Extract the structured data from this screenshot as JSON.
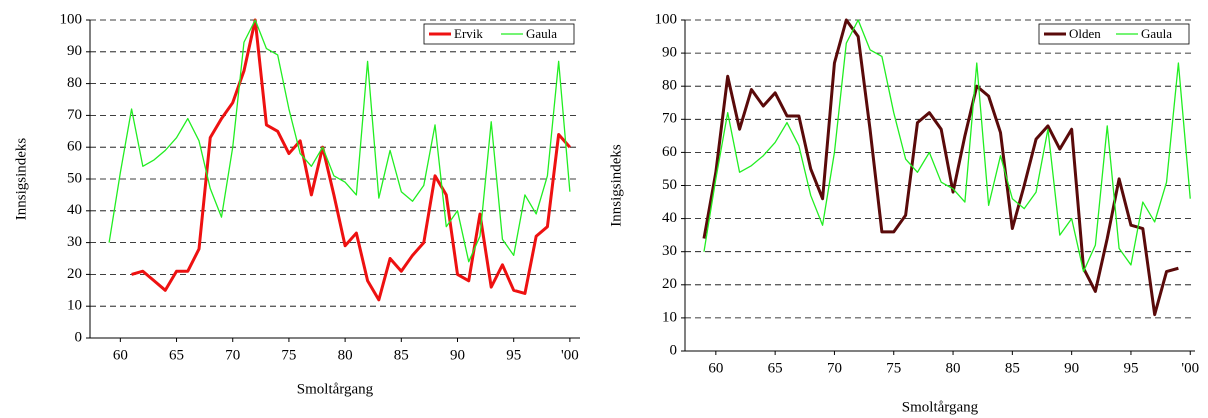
{
  "chart_data": [
    {
      "type": "line",
      "x_label": "Smoltårgang",
      "y_label": "Innsigsindeks",
      "legend": "upper right",
      "grid": true,
      "x": [
        59,
        60,
        61,
        62,
        63,
        64,
        65,
        66,
        67,
        68,
        69,
        70,
        71,
        72,
        73,
        74,
        75,
        76,
        77,
        78,
        79,
        80,
        81,
        82,
        83,
        84,
        85,
        86,
        87,
        88,
        89,
        90,
        91,
        92,
        93,
        94,
        95,
        96,
        97,
        98,
        99,
        100
      ],
      "xlim": [
        57.3,
        100.9
      ],
      "xticks": [
        60,
        65,
        70,
        75,
        80,
        85,
        90,
        95,
        {
          "value": 100,
          "label": "'00"
        }
      ],
      "ylim": [
        0,
        100
      ],
      "yticks": [
        0,
        10,
        20,
        30,
        40,
        50,
        60,
        70,
        80,
        90,
        100
      ],
      "series": [
        {
          "name": "Ervik",
          "color": "#ee1111",
          "width": 3,
          "values": [
            null,
            null,
            20,
            21,
            18,
            15,
            21,
            21,
            28,
            63,
            69,
            74,
            84,
            100,
            67,
            65,
            58,
            62,
            45,
            60,
            45,
            29,
            33,
            18,
            12,
            25,
            21,
            26,
            30,
            51,
            45,
            20,
            18,
            39,
            16,
            23,
            15,
            14,
            32,
            35,
            64,
            60
          ]
        },
        {
          "name": "Gaula",
          "color": "#22ee22",
          "width": 1.3,
          "values": [
            30,
            52,
            72,
            54,
            56,
            59,
            63,
            69,
            62,
            47,
            38,
            60,
            93,
            100,
            91,
            89,
            72,
            58,
            54,
            60,
            51,
            49,
            45,
            87,
            44,
            59,
            46,
            43,
            48,
            67,
            35,
            40,
            24,
            32,
            68,
            31,
            26,
            45,
            39,
            51,
            87,
            46
          ]
        }
      ]
    },
    {
      "type": "line",
      "x_label": "Smoltårgang",
      "y_label": "Innsigsindeks",
      "legend": "upper right",
      "grid": true,
      "x": [
        59,
        60,
        61,
        62,
        63,
        64,
        65,
        66,
        67,
        68,
        69,
        70,
        71,
        72,
        73,
        74,
        75,
        76,
        77,
        78,
        79,
        80,
        81,
        82,
        83,
        84,
        85,
        86,
        87,
        88,
        89,
        90,
        91,
        92,
        93,
        94,
        95,
        96,
        97,
        98,
        99,
        100
      ],
      "xlim": [
        57.4,
        100.4
      ],
      "xticks": [
        60,
        65,
        70,
        75,
        80,
        85,
        90,
        95,
        {
          "value": 100,
          "label": "'00"
        }
      ],
      "ylim": [
        0,
        100
      ],
      "yticks": [
        0,
        10,
        20,
        30,
        40,
        50,
        60,
        70,
        80,
        90,
        100
      ],
      "series": [
        {
          "name": "Olden",
          "color": "#5a0a0a",
          "width": 3,
          "values": [
            34,
            54,
            83,
            67,
            79,
            74,
            78,
            71,
            71,
            55,
            46,
            87,
            100,
            95,
            67,
            36,
            36,
            41,
            69,
            72,
            67,
            48,
            65,
            80,
            77,
            66,
            37,
            50,
            64,
            68,
            61,
            67,
            25,
            18,
            34,
            52,
            38,
            37,
            11,
            24,
            25,
            null
          ]
        },
        {
          "name": "Gaula",
          "color": "#22ee22",
          "width": 1.3,
          "values": [
            30,
            52,
            72,
            54,
            56,
            59,
            63,
            69,
            62,
            47,
            38,
            60,
            93,
            100,
            91,
            89,
            72,
            58,
            54,
            60,
            51,
            49,
            45,
            87,
            44,
            59,
            46,
            43,
            48,
            67,
            35,
            40,
            24,
            32,
            68,
            31,
            26,
            45,
            39,
            51,
            87,
            46
          ]
        }
      ]
    }
  ]
}
